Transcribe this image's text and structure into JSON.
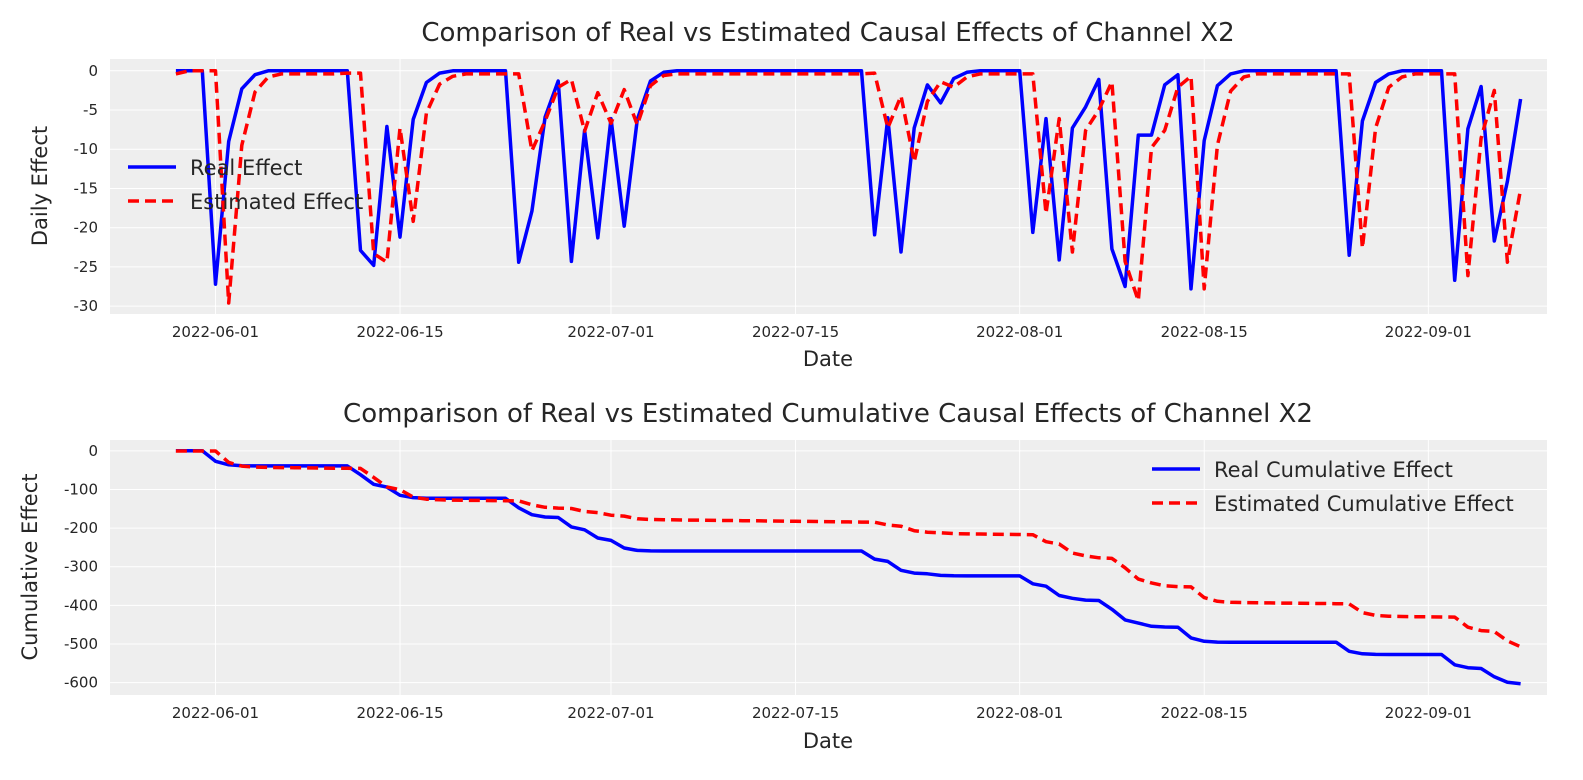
{
  "colors": {
    "real": "#0000ff",
    "estimated": "#ff0000",
    "plot_background": "#eeeeee"
  },
  "chart_data": [
    {
      "type": "line",
      "title": "Comparison of Real vs Estimated Causal Effects of Channel X2",
      "xlabel": "Date",
      "ylabel": "Daily Effect",
      "x_start": "2022-05-29",
      "x_end": "2022-09-04",
      "xlim": [
        "2022-05-24",
        "2022-09-10"
      ],
      "ylim": [
        -31,
        1.5
      ],
      "xticks": [
        "2022-06-01",
        "2022-06-15",
        "2022-07-01",
        "2022-07-15",
        "2022-08-01",
        "2022-08-15",
        "2022-09-01"
      ],
      "yticks": [
        0,
        -5,
        -10,
        -15,
        -20,
        -25,
        -30
      ],
      "legend_position": "center-left",
      "grid": true,
      "series": [
        {
          "name": "Real Effect",
          "style": "solid",
          "values": [
            0,
            0,
            0,
            -27.2,
            -9.0,
            -2.3,
            -0.5,
            0,
            0,
            0,
            0,
            0,
            0,
            0,
            -22.9,
            -24.8,
            -7.1,
            -21.2,
            -6.2,
            -1.5,
            -0.3,
            0,
            0,
            0,
            0,
            0,
            -24.4,
            -17.9,
            -5.9,
            -1.3,
            -24.3,
            -7.6,
            -21.3,
            -6.1,
            -19.8,
            -6.2,
            -1.3,
            -0.2,
            0,
            0,
            0,
            0,
            0,
            0,
            0,
            0,
            0,
            0,
            0,
            0,
            0,
            0,
            0,
            -20.9,
            -6.0,
            -23.1,
            -7.3,
            -1.8,
            -4.1,
            -1.0,
            -0.2,
            0,
            0,
            0,
            0,
            -20.6,
            -6.1,
            -24.1,
            -7.3,
            -4.6,
            -1.1,
            -22.7,
            -27.5,
            -8.2,
            -8.2,
            -1.8,
            -0.5,
            -27.8,
            -8.9,
            -1.9,
            -0.4,
            0,
            0,
            0,
            0,
            0,
            0,
            0,
            0,
            -23.5,
            -6.4,
            -1.5,
            -0.4,
            0,
            0,
            0,
            0,
            -26.7,
            -7.4,
            -2.0,
            -21.7,
            -14.1,
            -3.6
          ]
        },
        {
          "name": "Estimated Effect",
          "style": "dashed",
          "values": [
            -0.4,
            0,
            0,
            0,
            -29.6,
            -9.5,
            -2.7,
            -0.8,
            -0.4,
            -0.4,
            -0.4,
            -0.4,
            -0.4,
            -0.3,
            -0.3,
            -23.3,
            -24.4,
            -7.3,
            -19.2,
            -5.4,
            -1.7,
            -0.7,
            -0.4,
            -0.4,
            -0.4,
            -0.4,
            -0.4,
            -10.2,
            -6.4,
            -2.1,
            -1.1,
            -7.7,
            -2.8,
            -6.7,
            -2.4,
            -6.9,
            -1.9,
            -0.6,
            -0.4,
            -0.4,
            -0.4,
            -0.4,
            -0.4,
            -0.4,
            -0.4,
            -0.4,
            -0.4,
            -0.4,
            -0.4,
            -0.4,
            -0.4,
            -0.4,
            -0.4,
            -0.3,
            -7.3,
            -3.2,
            -11.6,
            -3.9,
            -1.4,
            -2.1,
            -0.8,
            -0.4,
            -0.4,
            -0.4,
            -0.4,
            -0.4,
            -18.2,
            -6.1,
            -23.1,
            -7.6,
            -5.0,
            -1.4,
            -24.3,
            -29.3,
            -9.8,
            -7.6,
            -2.1,
            -0.7,
            -27.8,
            -9.5,
            -2.6,
            -0.8,
            -0.4,
            -0.4,
            -0.4,
            -0.4,
            -0.4,
            -0.4,
            -0.4,
            -0.4,
            -22.6,
            -7.3,
            -2.1,
            -0.8,
            -0.4,
            -0.4,
            -0.4,
            -0.4,
            -26.1,
            -8.6,
            -2.5,
            -24.4,
            -15.1
          ]
        }
      ]
    },
    {
      "type": "line",
      "title": "Comparison of Real vs Estimated Cumulative Causal Effects of Channel X2",
      "xlabel": "Date",
      "ylabel": "Cumulative Effect",
      "x_start": "2022-05-29",
      "x_end": "2022-09-04",
      "xlim": [
        "2022-05-24",
        "2022-09-10"
      ],
      "ylim": [
        -632,
        28
      ],
      "xticks": [
        "2022-06-01",
        "2022-06-15",
        "2022-07-01",
        "2022-07-15",
        "2022-08-01",
        "2022-08-15",
        "2022-09-01"
      ],
      "yticks": [
        0,
        -100,
        -200,
        -300,
        -400,
        -500,
        -600
      ],
      "legend_position": "top-right",
      "grid": true,
      "series": [
        {
          "name": "Real Cumulative Effect",
          "style": "solid"
        },
        {
          "name": "Estimated Cumulative Effect",
          "style": "dashed"
        }
      ]
    }
  ]
}
